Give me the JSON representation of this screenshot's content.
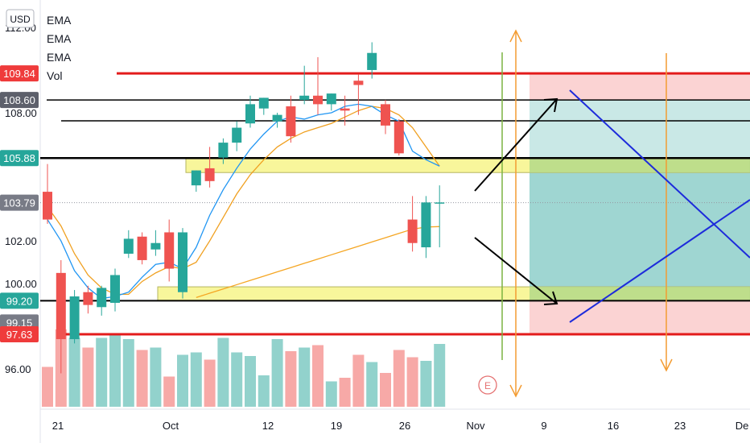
{
  "currency": "USD",
  "legend": [
    "EMA",
    "EMA",
    "EMA",
    "Vol"
  ],
  "earnings_marker": "E",
  "price_labels": [
    {
      "value": "109.84",
      "color": "#ef3b3b"
    },
    {
      "value": "108.60",
      "color": "#5d606b"
    },
    {
      "value": "105.88",
      "color": "#26a69a"
    },
    {
      "value": "103.79",
      "color": "#787b86"
    },
    {
      "value": "99.20",
      "color": "#26a69a"
    },
    {
      "value": "99.15",
      "color": "#787b86"
    },
    {
      "value": "97.63",
      "color": "#ef3b3b"
    }
  ],
  "chart_data": {
    "type": "candlestick",
    "y_ticks": [
      "112.00",
      "108.00",
      "102.00",
      "100.00",
      "96.00"
    ],
    "x_ticks": [
      "21",
      "Oct",
      "12",
      "19",
      "26",
      "Nov",
      "9",
      "16",
      "23",
      "De"
    ],
    "candles": [
      {
        "o": 104.3,
        "h": 105.6,
        "l": 102.8,
        "c": 103.0
      },
      {
        "o": 100.5,
        "h": 101.1,
        "l": 95.8,
        "c": 97.4
      },
      {
        "o": 97.4,
        "h": 99.7,
        "l": 97.2,
        "c": 99.4
      },
      {
        "o": 99.6,
        "h": 99.9,
        "l": 98.6,
        "c": 99.0
      },
      {
        "o": 98.9,
        "h": 99.9,
        "l": 98.5,
        "c": 99.8
      },
      {
        "o": 99.1,
        "h": 100.7,
        "l": 98.7,
        "c": 100.4
      },
      {
        "o": 101.4,
        "h": 102.5,
        "l": 101.2,
        "c": 102.1
      },
      {
        "o": 102.2,
        "h": 102.4,
        "l": 100.9,
        "c": 101.1
      },
      {
        "o": 101.6,
        "h": 102.5,
        "l": 101.3,
        "c": 101.9
      },
      {
        "o": 102.4,
        "h": 103.0,
        "l": 100.1,
        "c": 100.7
      },
      {
        "o": 99.6,
        "h": 102.6,
        "l": 99.3,
        "c": 102.4
      },
      {
        "o": 104.6,
        "h": 105.3,
        "l": 104.3,
        "c": 105.3
      },
      {
        "o": 105.4,
        "h": 106.4,
        "l": 104.5,
        "c": 104.8
      },
      {
        "o": 105.9,
        "h": 106.8,
        "l": 105.6,
        "c": 106.6
      },
      {
        "o": 106.6,
        "h": 107.6,
        "l": 106.2,
        "c": 107.3
      },
      {
        "o": 107.5,
        "h": 108.8,
        "l": 107.3,
        "c": 108.4
      },
      {
        "o": 108.2,
        "h": 108.7,
        "l": 107.9,
        "c": 108.7
      },
      {
        "o": 107.6,
        "h": 108.0,
        "l": 107.3,
        "c": 107.9
      },
      {
        "o": 108.3,
        "h": 108.8,
        "l": 106.6,
        "c": 106.9
      },
      {
        "o": 108.6,
        "h": 110.2,
        "l": 108.4,
        "c": 108.8
      },
      {
        "o": 108.8,
        "h": 110.6,
        "l": 107.9,
        "c": 108.4
      },
      {
        "o": 108.4,
        "h": 108.9,
        "l": 108.1,
        "c": 108.9
      },
      {
        "o": 108.2,
        "h": 108.8,
        "l": 107.4,
        "c": 108.1
      },
      {
        "o": 109.5,
        "h": 109.8,
        "l": 107.9,
        "c": 109.3
      },
      {
        "o": 110.0,
        "h": 111.3,
        "l": 109.6,
        "c": 110.8
      },
      {
        "o": 108.4,
        "h": 108.6,
        "l": 107.0,
        "c": 107.4
      },
      {
        "o": 107.6,
        "h": 107.7,
        "l": 106.0,
        "c": 106.1
      },
      {
        "o": 103.0,
        "h": 104.1,
        "l": 101.5,
        "c": 101.9
      },
      {
        "o": 101.7,
        "h": 104.1,
        "l": 101.2,
        "c": 103.8
      },
      {
        "o": 103.8,
        "h": 104.6,
        "l": 101.7,
        "c": 103.8
      }
    ],
    "volumes": [
      0.33,
      0.64,
      0.57,
      0.49,
      0.57,
      0.59,
      0.56,
      0.47,
      0.49,
      0.25,
      0.43,
      0.45,
      0.39,
      0.57,
      0.45,
      0.42,
      0.26,
      0.56,
      0.46,
      0.49,
      0.51,
      0.21,
      0.24,
      0.43,
      0.37,
      0.28,
      0.47,
      0.41,
      0.38,
      0.52
    ],
    "ema_fast": [
      103.0,
      102.0,
      100.6,
      99.8,
      99.3,
      99.4,
      99.6,
      100.3,
      100.9,
      101.0,
      100.7,
      101.7,
      103.2,
      104.4,
      105.4,
      106.3,
      107.0,
      107.6,
      107.8,
      107.7,
      107.9,
      108.0,
      108.3,
      108.4,
      108.3,
      107.9,
      107.6,
      106.2,
      105.8,
      105.5
    ],
    "ema_mid": [
      103.6,
      102.7,
      101.4,
      100.4,
      99.8,
      99.5,
      99.5,
      100.1,
      100.5,
      100.8,
      100.7,
      101.0,
      102.0,
      103.1,
      104.2,
      105.1,
      105.8,
      106.4,
      106.8,
      107.1,
      107.3,
      107.5,
      107.8,
      108.1,
      108.3,
      108.2,
      107.9,
      107.3,
      106.4,
      105.5
    ],
    "ema_slow": [
      null,
      null,
      null,
      null,
      null,
      null,
      null,
      null,
      null,
      null,
      null,
      99.35,
      99.55,
      99.75,
      99.95,
      100.15,
      100.35,
      100.55,
      100.75,
      100.95,
      101.15,
      101.35,
      101.55,
      101.75,
      101.95,
      102.15,
      102.35,
      102.55,
      102.65,
      102.67
    ],
    "levels": [
      109.84,
      108.6,
      107.62,
      105.88,
      99.2,
      97.63
    ],
    "zones": [
      [
        105.88,
        105.2
      ],
      [
        99.85,
        99.2
      ]
    ],
    "y_range": [
      94.8,
      112.6
    ]
  }
}
